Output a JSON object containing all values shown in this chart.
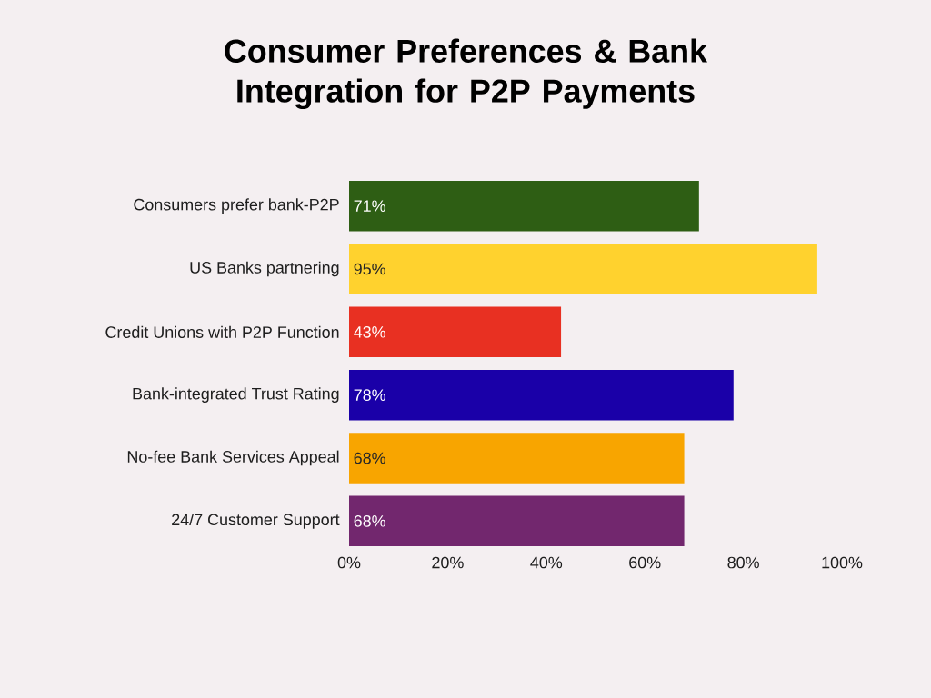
{
  "chart_data": {
    "type": "bar",
    "orientation": "horizontal",
    "title": "Consumer Preferences & Bank Integration for P2P Payments",
    "categories": [
      "Consumers prefer bank-P2P",
      "US Banks partnering",
      "Credit Unions with P2P Function",
      "Bank-integrated Trust Rating",
      "No-fee Bank Services Appeal",
      "24/7 Customer Support"
    ],
    "values": [
      71,
      95,
      43,
      78,
      68,
      68
    ],
    "value_labels": [
      "71%",
      "95%",
      "43%",
      "78%",
      "68%",
      "68%"
    ],
    "colors": [
      "#2e5e14",
      "#ffd22e",
      "#e83022",
      "#1a00a8",
      "#f8a500",
      "#72276e"
    ],
    "xlim": [
      0,
      100
    ],
    "xticks": [
      {
        "value": 0,
        "label": "0%"
      },
      {
        "value": 20,
        "label": "20%"
      },
      {
        "value": 40,
        "label": "40%"
      },
      {
        "value": 60,
        "label": "60%"
      },
      {
        "value": 80,
        "label": "80%"
      },
      {
        "value": 100,
        "label": "100%"
      }
    ]
  }
}
